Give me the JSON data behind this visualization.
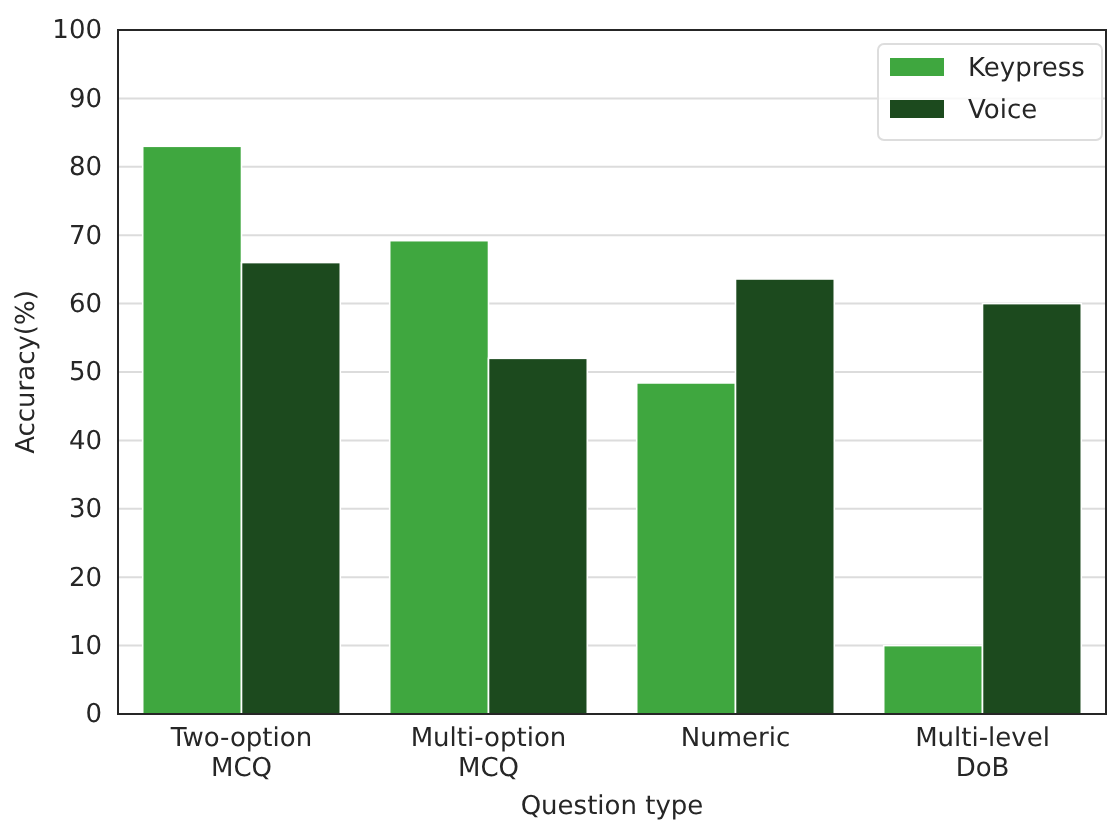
{
  "chart_data": {
    "type": "bar",
    "xlabel": "Question type",
    "ylabel": "Accuracy(%)",
    "categories": [
      "Two-option\nMCQ",
      "Multi-option\nMCQ",
      "Numeric",
      "Multi-level\nDoB"
    ],
    "series": [
      {
        "name": "Keypress",
        "color": "#3fa73f",
        "values": [
          83,
          69.2,
          48.4,
          10
        ]
      },
      {
        "name": "Voice",
        "color": "#1c4a1e",
        "values": [
          66,
          52,
          63.6,
          60
        ]
      }
    ],
    "ylim": [
      0,
      100
    ],
    "yticks": [
      0,
      10,
      20,
      30,
      40,
      50,
      60,
      70,
      80,
      90,
      100
    ],
    "grid": "y",
    "legend": "top right"
  }
}
